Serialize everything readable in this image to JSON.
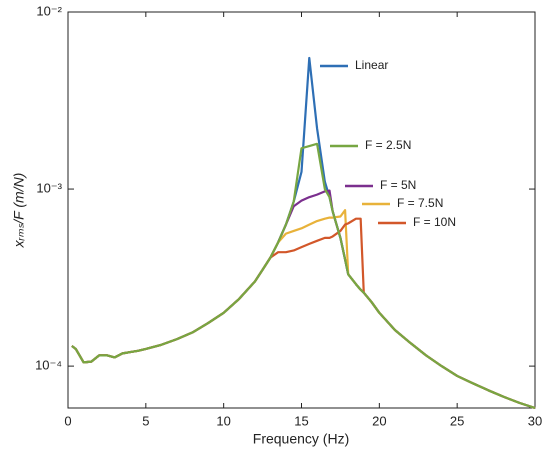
{
  "chart_data": {
    "type": "line",
    "xlabel": "Frequency (Hz)",
    "ylabel": "xᵣₘₛ/F (m/N)",
    "log_y": true,
    "grid": false,
    "xlim": [
      0,
      30
    ],
    "xticks": [
      0,
      5,
      10,
      15,
      20,
      25,
      30
    ],
    "ylim": [
      5.8e-05,
      0.01
    ],
    "yticks": [
      {
        "value": 0.0001,
        "label": "10⁻⁴"
      },
      {
        "value": 0.001,
        "label": "10⁻³"
      },
      {
        "value": 0.01,
        "label": "10⁻²"
      }
    ],
    "x": [
      0.25,
      0.5,
      1,
      1.5,
      2,
      2.5,
      3,
      3.5,
      4,
      4.5,
      5,
      6,
      7,
      8,
      9,
      10,
      11,
      12,
      12.5,
      13,
      13.5,
      14,
      14.5,
      15,
      15.5,
      16,
      16.5,
      16.8,
      17,
      17.5,
      17.8,
      18,
      18.5,
      18.8,
      19,
      19.5,
      20,
      21,
      22,
      23,
      24,
      25,
      26,
      27,
      28,
      29,
      30
    ],
    "series": [
      {
        "name": "Linear",
        "color": "#2e6fb5",
        "values": [
          0.00013,
          0.000125,
          0.000105,
          0.000106,
          0.000115,
          0.000115,
          0.000112,
          0.000118,
          0.00012,
          0.000122,
          0.000125,
          0.000132,
          0.000142,
          0.000155,
          0.000175,
          0.0002,
          0.00024,
          0.0003,
          0.00035,
          0.00041,
          0.0005,
          0.00063,
          0.00085,
          0.00125,
          0.0055,
          0.0022,
          0.0011,
          0.0009,
          0.00075,
          0.00053,
          0.0004,
          0.00033,
          0.00029,
          0.00027,
          0.00026,
          0.00023,
          0.0002,
          0.00016,
          0.000135,
          0.000115,
          0.0001,
          8.8e-05,
          8e-05,
          7.3e-05,
          6.7e-05,
          6.2e-05,
          5.8e-05
        ]
      },
      {
        "name": "F = 2.5N",
        "color": "#77a642",
        "values": [
          0.00013,
          0.000125,
          0.000105,
          0.000106,
          0.000115,
          0.000115,
          0.000112,
          0.000118,
          0.00012,
          0.000122,
          0.000125,
          0.000132,
          0.000142,
          0.000155,
          0.000175,
          0.0002,
          0.00024,
          0.0003,
          0.00035,
          0.00041,
          0.0005,
          0.00063,
          0.00085,
          0.0017,
          0.00175,
          0.0018,
          0.001,
          0.0009,
          0.00075,
          0.00053,
          0.0004,
          0.00033,
          0.00029,
          0.00027,
          0.00026,
          0.00023,
          0.0002,
          0.00016,
          0.000135,
          0.000115,
          0.0001,
          8.8e-05,
          8e-05,
          7.3e-05,
          6.7e-05,
          6.2e-05,
          5.8e-05
        ]
      },
      {
        "name": "F = 5N",
        "color": "#7b2f8e",
        "values": [
          0.00013,
          0.000125,
          0.000105,
          0.000106,
          0.000115,
          0.000115,
          0.000112,
          0.000118,
          0.00012,
          0.000122,
          0.000125,
          0.000132,
          0.000142,
          0.000155,
          0.000175,
          0.0002,
          0.00024,
          0.0003,
          0.00035,
          0.00041,
          0.0005,
          0.00063,
          0.0008,
          0.00086,
          0.0009,
          0.00093,
          0.00097,
          0.00098,
          0.00075,
          0.00053,
          0.0004,
          0.00033,
          0.00029,
          0.00027,
          0.00026,
          0.00023,
          0.0002,
          0.00016,
          0.000135,
          0.000115,
          0.0001,
          8.8e-05,
          8e-05,
          7.3e-05,
          6.7e-05,
          6.2e-05,
          5.8e-05
        ]
      },
      {
        "name": "F = 7.5N",
        "color": "#e8b23a",
        "values": [
          0.00013,
          0.000125,
          0.000105,
          0.000106,
          0.000115,
          0.000115,
          0.000112,
          0.000118,
          0.00012,
          0.000122,
          0.000125,
          0.000132,
          0.000142,
          0.000155,
          0.000175,
          0.0002,
          0.00024,
          0.0003,
          0.00035,
          0.00041,
          0.0005,
          0.00056,
          0.00058,
          0.0006,
          0.00063,
          0.00066,
          0.00068,
          0.00069,
          0.00069,
          0.0007,
          0.00076,
          0.00033,
          0.00029,
          0.00027,
          0.00026,
          0.00023,
          0.0002,
          0.00016,
          0.000135,
          0.000115,
          0.0001,
          8.8e-05,
          8e-05,
          7.3e-05,
          6.7e-05,
          6.2e-05,
          5.8e-05
        ]
      },
      {
        "name": "F = 10N",
        "color": "#d2572a",
        "values": [
          0.00013,
          0.000125,
          0.000105,
          0.000106,
          0.000115,
          0.000115,
          0.000112,
          0.000118,
          0.00012,
          0.000122,
          0.000125,
          0.000132,
          0.000142,
          0.000155,
          0.000175,
          0.0002,
          0.00024,
          0.0003,
          0.00035,
          0.00041,
          0.00044,
          0.00044,
          0.00045,
          0.00047,
          0.00049,
          0.00051,
          0.00053,
          0.00053,
          0.00054,
          0.00058,
          0.00063,
          0.00064,
          0.00068,
          0.00068,
          0.00026,
          0.00023,
          0.0002,
          0.00016,
          0.000135,
          0.000115,
          0.0001,
          8.8e-05,
          8e-05,
          7.3e-05,
          6.7e-05,
          6.2e-05,
          5.8e-05
        ]
      }
    ]
  }
}
